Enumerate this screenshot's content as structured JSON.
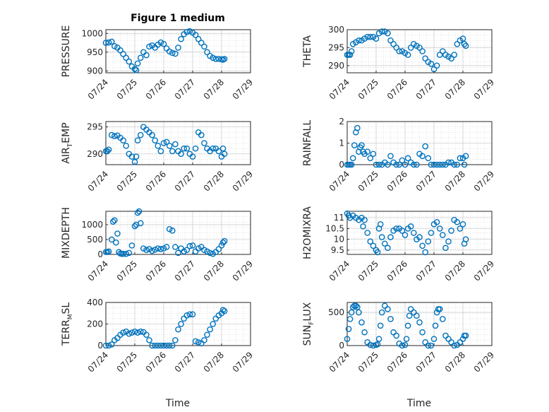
{
  "figure": {
    "title": "Figure 1 medium",
    "xlabel": "Time"
  },
  "colors": {
    "marker": "#0072bd",
    "axis": "#262626",
    "grid": "#d9d9d9"
  },
  "chart_data": [
    {
      "type": "scatter",
      "name": "PRESSURE",
      "ylabel": "PRESSURE",
      "ylim": [
        895,
        1010
      ],
      "yticks": [
        900,
        950,
        1000
      ],
      "xlim": [
        "07/24",
        "07/29"
      ],
      "xticks": [
        "07/24",
        "07/25",
        "07/26",
        "07/27",
        "07/28",
        "07/29"
      ],
      "x": [
        0.0,
        0.1,
        0.2,
        0.3,
        0.4,
        0.5,
        0.6,
        0.7,
        0.8,
        0.9,
        1.0,
        1.05,
        1.1,
        1.2,
        1.3,
        1.4,
        1.5,
        1.6,
        1.7,
        1.8,
        1.9,
        2.0,
        2.1,
        2.2,
        2.3,
        2.4,
        2.5,
        2.6,
        2.7,
        2.8,
        2.9,
        3.0,
        3.1,
        3.2,
        3.3,
        3.4,
        3.5,
        3.6,
        3.7,
        3.8,
        3.9,
        4.0,
        4.05,
        4.1
      ],
      "y": [
        975,
        976,
        978,
        966,
        962,
        955,
        945,
        935,
        925,
        912,
        905,
        902,
        920,
        935,
        950,
        942,
        965,
        968,
        962,
        970,
        976,
        972,
        960,
        952,
        948,
        946,
        962,
        985,
        998,
        1004,
        1006,
        1002,
        996,
        985,
        975,
        965,
        950,
        940,
        935,
        932,
        932,
        931,
        930,
        932
      ]
    },
    {
      "type": "scatter",
      "name": "THETA",
      "ylabel": "THETA",
      "ylim": [
        288,
        300
      ],
      "yticks": [
        290,
        295,
        300
      ],
      "xlim": [
        "07/24",
        "07/29"
      ],
      "xticks": [
        "07/24",
        "07/25",
        "07/26",
        "07/27",
        "07/28",
        "07/29"
      ],
      "x": [
        0.0,
        0.05,
        0.1,
        0.15,
        0.2,
        0.3,
        0.4,
        0.5,
        0.6,
        0.7,
        0.8,
        0.9,
        1.0,
        1.1,
        1.2,
        1.3,
        1.4,
        1.5,
        1.6,
        1.7,
        1.8,
        1.9,
        2.0,
        2.1,
        2.2,
        2.3,
        2.4,
        2.5,
        2.6,
        2.7,
        2.8,
        2.9,
        3.0,
        3.1,
        3.2,
        3.3,
        3.4,
        3.5,
        3.6,
        3.7,
        3.8,
        3.9,
        4.0,
        4.05,
        4.1
      ],
      "y": [
        293,
        293,
        293,
        294,
        296,
        296.5,
        297,
        297,
        297.5,
        298,
        298,
        298,
        297.5,
        299,
        299.5,
        299.5,
        299,
        297,
        296,
        295,
        294,
        294,
        293.5,
        293,
        295,
        296,
        295.5,
        295,
        294,
        292,
        291,
        290.5,
        289,
        290,
        293,
        294,
        293,
        292.5,
        292,
        293,
        296,
        297,
        297.5,
        296,
        295.5
      ]
    },
    {
      "type": "scatter",
      "name": "AIR_TEMP",
      "ylabel": "AIR_TEMP",
      "ylim": [
        288,
        296
      ],
      "yticks": [
        290,
        295
      ],
      "xlim": [
        "07/24",
        "07/29"
      ],
      "xticks": [
        "07/24",
        "07/25",
        "07/26",
        "07/27",
        "07/28",
        "07/29"
      ],
      "x": [
        0.0,
        0.05,
        0.1,
        0.2,
        0.3,
        0.4,
        0.5,
        0.6,
        0.7,
        0.8,
        0.9,
        1.0,
        1.05,
        1.1,
        1.2,
        1.3,
        1.4,
        1.5,
        1.6,
        1.7,
        1.8,
        1.9,
        2.0,
        2.1,
        2.2,
        2.3,
        2.4,
        2.5,
        2.6,
        2.7,
        2.8,
        2.9,
        3.0,
        3.1,
        3.2,
        3.3,
        3.4,
        3.5,
        3.6,
        3.7,
        3.8,
        3.9,
        4.0,
        4.05,
        4.1
      ],
      "y": [
        290.5,
        290.5,
        290.8,
        293.5,
        293.3,
        293.4,
        293,
        292.5,
        291.5,
        290,
        289.5,
        288.5,
        289.5,
        292.5,
        293.5,
        295,
        294.5,
        294,
        293.5,
        292.5,
        291.5,
        290.5,
        292,
        292.2,
        291.5,
        290.5,
        291.8,
        290.5,
        290,
        291,
        291,
        290,
        289.5,
        291,
        294,
        293.5,
        292,
        291,
        290.5,
        291,
        291,
        290.5,
        289.5,
        291,
        290
      ]
    },
    {
      "type": "scatter",
      "name": "RAINFALL",
      "ylabel": "RAINFALL",
      "ylim": [
        0,
        2
      ],
      "yticks": [
        0,
        1,
        2
      ],
      "xlim": [
        "07/24",
        "07/29"
      ],
      "xticks": [
        "07/24",
        "07/25",
        "07/26",
        "07/27",
        "07/28",
        "07/29"
      ],
      "x": [
        0.0,
        0.05,
        0.1,
        0.15,
        0.2,
        0.25,
        0.3,
        0.35,
        0.4,
        0.45,
        0.5,
        0.55,
        0.6,
        0.7,
        0.8,
        0.9,
        1.0,
        1.1,
        1.2,
        1.3,
        1.4,
        1.5,
        1.6,
        1.7,
        1.8,
        1.9,
        2.0,
        2.1,
        2.2,
        2.3,
        2.4,
        2.5,
        2.6,
        2.7,
        2.8,
        2.9,
        3.0,
        3.1,
        3.2,
        3.3,
        3.4,
        3.5,
        3.6,
        3.7,
        3.8,
        3.9,
        4.0,
        4.05,
        4.1
      ],
      "y": [
        0,
        0,
        0,
        0,
        0.3,
        0.9,
        1.5,
        1.7,
        0.6,
        0.8,
        0.9,
        0.6,
        0.5,
        0.6,
        0.3,
        0.5,
        0,
        0,
        0,
        0.1,
        0,
        0.4,
        0.1,
        0,
        0,
        0.2,
        0,
        0.3,
        0.1,
        0,
        0,
        0.5,
        0.4,
        0.85,
        0.3,
        0,
        0,
        0,
        0,
        0,
        0,
        0.1,
        0.1,
        0,
        0,
        0.3,
        0.3,
        0,
        0.4
      ]
    },
    {
      "type": "scatter",
      "name": "MIXDEPTH",
      "ylabel": "MIXDEPTH",
      "ylim": [
        0,
        1450
      ],
      "yticks": [
        0,
        500,
        1000
      ],
      "xlim": [
        "07/24",
        "07/29"
      ],
      "xticks": [
        "07/24",
        "07/25",
        "07/26",
        "07/27",
        "07/28",
        "07/29"
      ],
      "x": [
        0.0,
        0.05,
        0.1,
        0.2,
        0.25,
        0.3,
        0.35,
        0.4,
        0.45,
        0.5,
        0.55,
        0.6,
        0.7,
        0.8,
        0.9,
        1.0,
        1.05,
        1.1,
        1.15,
        1.2,
        1.3,
        1.4,
        1.5,
        1.6,
        1.7,
        1.8,
        1.9,
        2.0,
        2.1,
        2.2,
        2.3,
        2.4,
        2.5,
        2.6,
        2.7,
        2.8,
        2.9,
        3.0,
        3.1,
        3.2,
        3.3,
        3.4,
        3.5,
        3.6,
        3.7,
        3.8,
        3.9,
        4.0,
        4.05,
        4.1
      ],
      "y": [
        80,
        80,
        100,
        500,
        1100,
        1150,
        400,
        700,
        80,
        30,
        20,
        20,
        20,
        50,
        300,
        950,
        1000,
        1400,
        1450,
        1050,
        200,
        150,
        180,
        120,
        160,
        200,
        180,
        200,
        250,
        850,
        800,
        250,
        50,
        200,
        100,
        150,
        280,
        300,
        100,
        200,
        250,
        150,
        100,
        50,
        20,
        80,
        180,
        300,
        400,
        450
      ]
    },
    {
      "type": "scatter",
      "name": "H2OMIXRA",
      "ylabel": "H2OMIXRA",
      "ylim": [
        9.3,
        11.3
      ],
      "yticks": [
        9.5,
        10,
        10.5,
        11
      ],
      "xlim": [
        "07/24",
        "07/29"
      ],
      "xticks": [
        "07/24",
        "07/25",
        "07/26",
        "07/27",
        "07/28",
        "07/29"
      ],
      "x": [
        0.0,
        0.05,
        0.1,
        0.2,
        0.3,
        0.4,
        0.5,
        0.55,
        0.6,
        0.7,
        0.8,
        0.9,
        1.0,
        1.05,
        1.1,
        1.15,
        1.2,
        1.3,
        1.4,
        1.5,
        1.6,
        1.7,
        1.8,
        1.9,
        2.0,
        2.1,
        2.2,
        2.3,
        2.4,
        2.5,
        2.6,
        2.7,
        2.8,
        2.9,
        3.0,
        3.1,
        3.2,
        3.3,
        3.4,
        3.5,
        3.6,
        3.7,
        3.8,
        3.9,
        4.0,
        4.05,
        4.1
      ],
      "y": [
        11.2,
        11.1,
        11.0,
        11.1,
        11.0,
        10.9,
        11.0,
        10.6,
        10.9,
        10.3,
        9.9,
        9.7,
        9.5,
        9.4,
        10.5,
        10.7,
        10.1,
        9.8,
        9.6,
        10.1,
        10.4,
        10.5,
        10.5,
        10.4,
        10.2,
        10.5,
        10.6,
        10.3,
        10.0,
        10.1,
        9.7,
        9.4,
        9.9,
        10.3,
        10.7,
        10.8,
        10.5,
        10.2,
        9.6,
        9.9,
        10.4,
        10.9,
        10.8,
        10.5,
        10.7,
        9.8,
        10.0
      ]
    },
    {
      "type": "scatter",
      "name": "TERR_MSL",
      "ylabel": "TERR_MSL",
      "ylim": [
        0,
        400
      ],
      "yticks": [
        0,
        200,
        400
      ],
      "xlim": [
        "07/24",
        "07/29"
      ],
      "xticks": [
        "07/24",
        "07/25",
        "07/26",
        "07/27",
        "07/28",
        "07/29"
      ],
      "x": [
        0.0,
        0.1,
        0.2,
        0.3,
        0.4,
        0.5,
        0.6,
        0.7,
        0.8,
        0.9,
        1.0,
        1.1,
        1.2,
        1.3,
        1.4,
        1.5,
        1.6,
        1.7,
        1.8,
        1.9,
        2.0,
        2.1,
        2.2,
        2.3,
        2.4,
        2.5,
        2.6,
        2.7,
        2.8,
        2.9,
        3.0,
        3.1,
        3.2,
        3.3,
        3.4,
        3.5,
        3.6,
        3.7,
        3.8,
        3.9,
        4.0,
        4.05,
        4.1
      ],
      "y": [
        0,
        0,
        10,
        50,
        70,
        100,
        120,
        130,
        110,
        120,
        130,
        120,
        130,
        125,
        100,
        50,
        0,
        0,
        0,
        0,
        0,
        0,
        0,
        0,
        50,
        150,
        200,
        250,
        280,
        290,
        290,
        40,
        30,
        20,
        50,
        100,
        150,
        200,
        250,
        280,
        300,
        330,
        320
      ]
    },
    {
      "type": "scatter",
      "name": "SUN_FLUX",
      "ylabel": "SUN_FLUX",
      "ylim": [
        0,
        650
      ],
      "yticks": [
        0,
        500
      ],
      "xlim": [
        "07/24",
        "07/29"
      ],
      "xticks": [
        "07/24",
        "07/25",
        "07/26",
        "07/27",
        "07/28",
        "07/29"
      ],
      "x": [
        0.0,
        0.05,
        0.1,
        0.15,
        0.2,
        0.25,
        0.3,
        0.35,
        0.4,
        0.5,
        0.6,
        0.7,
        0.8,
        0.9,
        1.0,
        1.05,
        1.1,
        1.15,
        1.2,
        1.3,
        1.4,
        1.5,
        1.6,
        1.7,
        1.8,
        1.9,
        2.0,
        2.05,
        2.1,
        2.15,
        2.2,
        2.3,
        2.4,
        2.5,
        2.6,
        2.7,
        2.8,
        2.9,
        3.0,
        3.05,
        3.1,
        3.15,
        3.2,
        3.3,
        3.4,
        3.5,
        3.6,
        3.7,
        3.8,
        3.9,
        4.0,
        4.05,
        4.1
      ],
      "y": [
        100,
        250,
        400,
        500,
        580,
        600,
        600,
        580,
        500,
        350,
        200,
        50,
        10,
        0,
        10,
        20,
        100,
        300,
        500,
        600,
        550,
        400,
        200,
        150,
        30,
        0,
        10,
        100,
        300,
        450,
        550,
        500,
        450,
        350,
        200,
        50,
        0,
        0,
        100,
        300,
        500,
        550,
        550,
        400,
        150,
        100,
        50,
        0,
        10,
        50,
        100,
        150,
        150
      ]
    }
  ]
}
